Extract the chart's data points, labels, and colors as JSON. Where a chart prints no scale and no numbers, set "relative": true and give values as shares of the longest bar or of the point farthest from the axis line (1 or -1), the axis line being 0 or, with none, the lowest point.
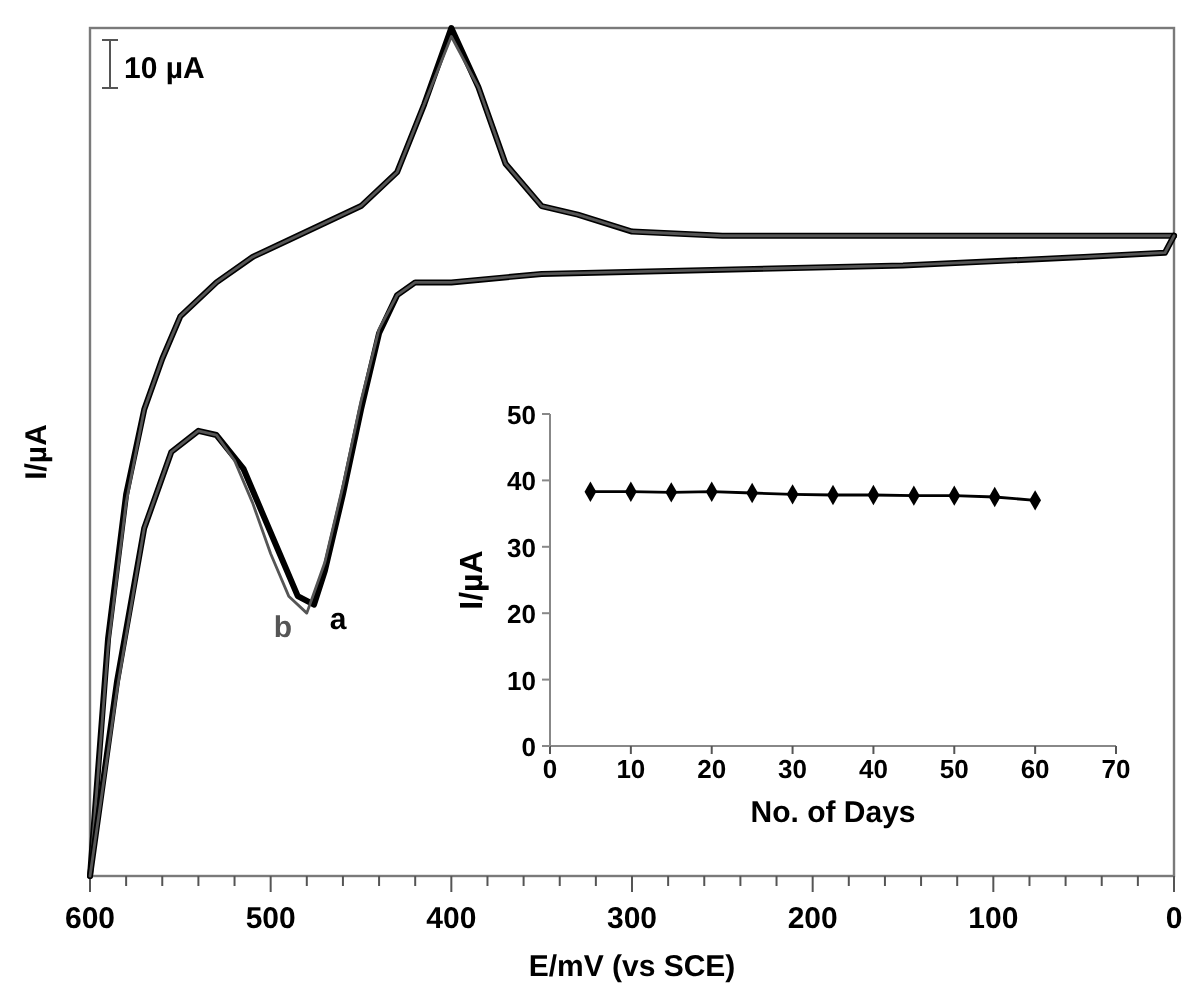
{
  "chart_data": [
    {
      "type": "line",
      "xlabel": "E/mV (vs SCE)",
      "ylabel": "I/µA",
      "relative": true,
      "tick_labels": "x",
      "xlim": [
        600,
        0
      ],
      "xticks": [
        600,
        {
          "value": 580,
          "label": null
        },
        {
          "value": 560,
          "label": null
        },
        {
          "value": 540,
          "label": null
        },
        {
          "value": 520,
          "label": null
        },
        500,
        {
          "value": 480,
          "label": null
        },
        {
          "value": 460,
          "label": null
        },
        {
          "value": 440,
          "label": null
        },
        {
          "value": 420,
          "label": null
        },
        400,
        {
          "value": 380,
          "label": null
        },
        {
          "value": 360,
          "label": null
        },
        {
          "value": 340,
          "label": null
        },
        {
          "value": 320,
          "label": null
        },
        300,
        {
          "value": 280,
          "label": null
        },
        {
          "value": 260,
          "label": null
        },
        {
          "value": 240,
          "label": null
        },
        {
          "value": 220,
          "label": null
        },
        200,
        {
          "value": 180,
          "label": null
        },
        {
          "value": 160,
          "label": null
        },
        {
          "value": 140,
          "label": null
        },
        {
          "value": 120,
          "label": null
        },
        100,
        {
          "value": 80,
          "label": null
        },
        {
          "value": 60,
          "label": null
        },
        {
          "value": 40,
          "label": null
        },
        {
          "value": 20,
          "label": null
        },
        0
      ],
      "annotations": [
        "10 µA"
      ],
      "grid": false,
      "marker": "none",
      "line_style": "solid",
      "series": [
        {
          "color": "#000000",
          "x": [
            600,
            590,
            580,
            570,
            560,
            550,
            530,
            510,
            490,
            470,
            450,
            430,
            415,
            400,
            385,
            370,
            350,
            330,
            300,
            250,
            100,
            0
          ],
          "values": [
            0,
            0.28,
            0.45,
            0.55,
            0.61,
            0.66,
            0.7,
            0.73,
            0.75,
            0.77,
            0.79,
            0.83,
            0.91,
            1.0,
            0.93,
            0.84,
            0.79,
            0.78,
            0.76,
            0.755,
            0.755,
            0.755
          ]
        },
        {
          "color": "#555555",
          "x": [
            600,
            590,
            580,
            570,
            560,
            550,
            530,
            510,
            490,
            470,
            450,
            430,
            415,
            400,
            385,
            370,
            350,
            330,
            300,
            250,
            100,
            0
          ],
          "values": [
            0,
            0.27,
            0.44,
            0.55,
            0.61,
            0.66,
            0.7,
            0.73,
            0.75,
            0.77,
            0.79,
            0.83,
            0.91,
            0.99,
            0.93,
            0.84,
            0.79,
            0.78,
            0.76,
            0.755,
            0.755,
            0.755
          ]
        },
        {
          "name": "a",
          "color": "#000000",
          "x": [
            0,
            5,
            50,
            150,
            250,
            350,
            400,
            420,
            430,
            440,
            450,
            460,
            470,
            476,
            485,
            495,
            505,
            515,
            530,
            540,
            555,
            570,
            585,
            600
          ],
          "values": [
            0.755,
            0.735,
            0.73,
            0.72,
            0.715,
            0.71,
            0.7,
            0.7,
            0.685,
            0.64,
            0.55,
            0.45,
            0.36,
            0.32,
            0.33,
            0.38,
            0.43,
            0.48,
            0.52,
            0.525,
            0.5,
            0.41,
            0.23,
            0
          ]
        },
        {
          "name": "b",
          "color": "#555555",
          "x": [
            0,
            5,
            50,
            150,
            250,
            350,
            400,
            420,
            430,
            440,
            450,
            460,
            470,
            480,
            490,
            500,
            510,
            520,
            530,
            540,
            555,
            570,
            585,
            600
          ],
          "values": [
            0.755,
            0.735,
            0.73,
            0.72,
            0.715,
            0.71,
            0.7,
            0.7,
            0.685,
            0.645,
            0.56,
            0.46,
            0.37,
            0.31,
            0.33,
            0.38,
            0.44,
            0.49,
            0.52,
            0.525,
            0.5,
            0.41,
            0.22,
            0
          ]
        }
      ]
    },
    {
      "type": "line",
      "xlabel": "No. of Days",
      "ylabel": "I/µA",
      "xlim": [
        0,
        70
      ],
      "xticks": [
        0,
        10,
        20,
        30,
        40,
        50,
        60,
        70
      ],
      "ylim": [
        0,
        50
      ],
      "yticks": [
        0,
        10,
        20,
        30,
        40,
        50
      ],
      "grid": false,
      "marker": "diamond",
      "line_style": "solid",
      "series": [
        {
          "color": "#000000",
          "x": [
            5,
            10,
            15,
            20,
            25,
            30,
            35,
            40,
            45,
            50,
            55,
            60
          ],
          "values": [
            38.3,
            38.3,
            38.2,
            38.3,
            38.1,
            37.9,
            37.8,
            37.8,
            37.7,
            37.7,
            37.5,
            37.0
          ]
        }
      ]
    }
  ]
}
